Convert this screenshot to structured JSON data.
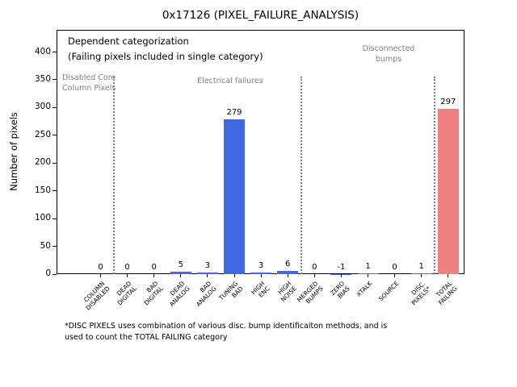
{
  "chart_data": {
    "type": "bar",
    "title": "0x17126 (PIXEL_FAILURE_ANALYSIS)",
    "ylabel": "Number of pixels",
    "xlabel": "",
    "ylim": [
      0,
      440
    ],
    "yticks": [
      0,
      50,
      100,
      150,
      200,
      250,
      300,
      350,
      400
    ],
    "grid": false,
    "legend": false,
    "categories": [
      "COLUMN\nDISABLED",
      "DEAD\nDIGITAL",
      "BAD\nDIGITAL",
      "DEAD\nANALOG",
      "BAD\nANALOG",
      "TUNING\nBAD",
      "HIGH\nENC",
      "HIGH\nNOISE",
      "MERGED\nBUMPS",
      "ZERO\nBIAS",
      "XTALK",
      "SOURCE",
      "DISC.\nPIXELS*",
      "TOTAL\nFAILING"
    ],
    "values": [
      0,
      0,
      0,
      5,
      3,
      279,
      3,
      6,
      0,
      -1,
      1,
      0,
      1,
      297
    ],
    "bar_colors": [
      "#4169e1",
      "#4169e1",
      "#4169e1",
      "#4169e1",
      "#4169e1",
      "#4169e1",
      "#4169e1",
      "#4169e1",
      "#4169e1",
      "#4169e1",
      "#2e8b57",
      "#4169e1",
      "#4169e1",
      "#f08080"
    ],
    "colors": {
      "bar_default": "#4169e1",
      "bar_total_failing": "#f08080",
      "bar_xtalk": "#2e8b57",
      "section_label": "#808080",
      "separator": "#7f7f7f"
    },
    "annotations": {
      "note_line1": "Dependent categorization",
      "note_line2": "(Failing pixels included in single category)",
      "section_labels": [
        "Disabled Core\nColumn Pixels",
        "Electrical failures",
        "Disconnected\nbumps"
      ],
      "separators_after_index": [
        0,
        7,
        12
      ]
    },
    "footnote": "*DISC PIXELS uses combination of various disc. bump identificaiton methods, and is\nused to count the TOTAL FAILING category"
  }
}
